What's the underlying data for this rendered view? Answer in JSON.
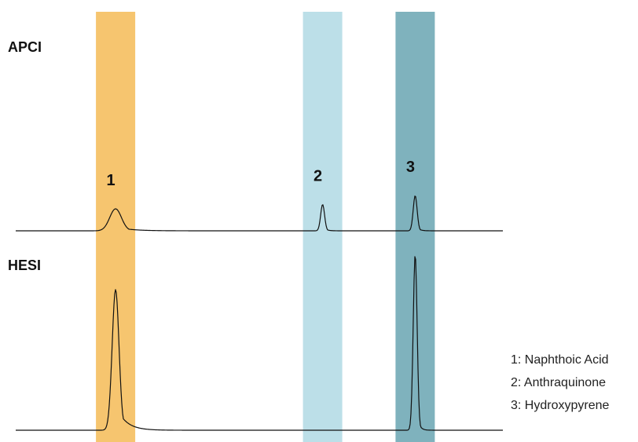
{
  "chart_data": {
    "type": "line",
    "title": "",
    "xlabel": "",
    "ylabel": "",
    "grid": false,
    "legend_position": "right",
    "peak_bands": [
      {
        "label": "1",
        "color": "#f6c56f"
      },
      {
        "label": "2",
        "color": "#bcdfe8"
      },
      {
        "label": "3",
        "color": "#7fb2bd"
      }
    ],
    "series": [
      {
        "name": "APCI",
        "peaks": [
          {
            "label": "1",
            "rt": 0.205,
            "height": 0.1,
            "width": 0.012,
            "tail": 0.03
          },
          {
            "label": "2",
            "rt": 0.63,
            "height": 0.12,
            "width": 0.004,
            "tail": 0.006
          },
          {
            "label": "3",
            "rt": 0.82,
            "height": 0.16,
            "width": 0.004,
            "tail": 0.006
          }
        ],
        "show_peak_labels": true
      },
      {
        "name": "HESI",
        "peaks": [
          {
            "label": "1",
            "rt": 0.205,
            "height": 0.64,
            "width": 0.007,
            "tail": 0.02
          },
          {
            "label": "3",
            "rt": 0.82,
            "height": 0.8,
            "width": 0.004,
            "tail": 0.005
          }
        ],
        "show_peak_labels": false
      }
    ],
    "legend": [
      "1: Naphthoic Acid",
      "2: Anthraquinone",
      "3: Hydroxypyrene"
    ]
  }
}
